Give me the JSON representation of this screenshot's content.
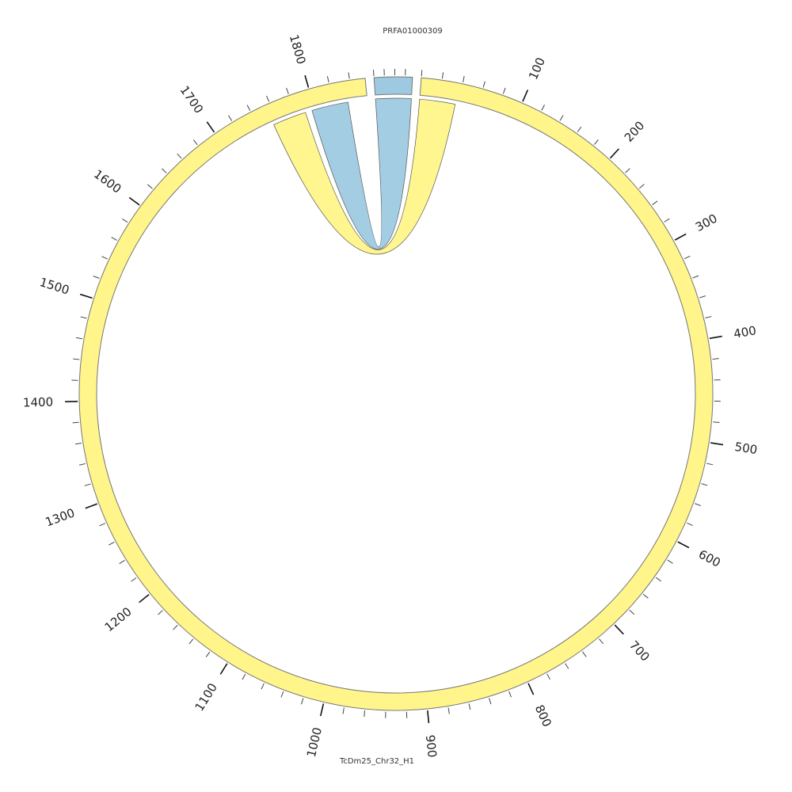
{
  "chart_data": {
    "type": "chord",
    "segments": [
      {
        "name": "PRFA01000309",
        "length": 37,
        "color": "#9ecae1"
      },
      {
        "name": "TcDm25_Chr32_H1",
        "length": 1855,
        "color": "#fff58a"
      }
    ],
    "tick_labels": [
      "100",
      "200",
      "300",
      "400",
      "500",
      "600",
      "700",
      "800",
      "900",
      "1000",
      "1100",
      "1200",
      "1300",
      "1400",
      "1500",
      "1600",
      "1700",
      "1800"
    ],
    "links": [
      {
        "source": "PRFA01000309",
        "source_range": [
          0,
          37
        ],
        "target": "TcDm25_Chr32_H1",
        "target_range": [
          1797,
          1835
        ],
        "color": "#9ecae1"
      },
      {
        "source": "TcDm25_Chr32_H1",
        "source_range": [
          0,
          37
        ],
        "target": "TcDm25_Chr32_H1",
        "target_range": [
          1755,
          1790
        ],
        "color": "#fff58a"
      }
    ],
    "grid": false
  },
  "colors": {
    "segment_stroke": "#777777",
    "link_stroke": "#555555",
    "overlap_link": "#dfe88a",
    "tick": "#444444"
  }
}
